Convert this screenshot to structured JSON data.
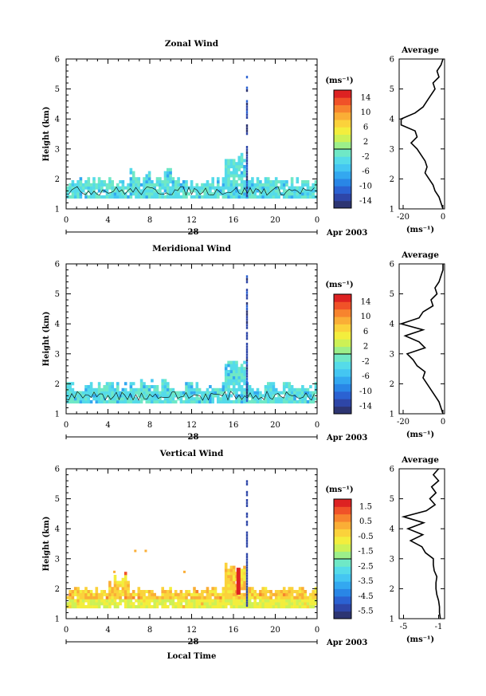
{
  "chart_data": [
    {
      "type": "heatmap",
      "title": "Zonal Wind",
      "ylabel": "Height (km)",
      "xlabel": "",
      "ylim": [
        1,
        6
      ],
      "yticks": [
        "1",
        "2",
        "3",
        "4",
        "5",
        "6"
      ],
      "xticks": [
        "0",
        "4",
        "8",
        "12",
        "16",
        "20",
        "0"
      ],
      "date_day": "28",
      "date_label": "Apr 2003",
      "colorbar": {
        "unit": "(ms⁻¹)",
        "ticks": [
          "14",
          "10",
          "6",
          "2",
          "-2",
          "-6",
          "-10",
          "-14"
        ],
        "range": [
          -16,
          16
        ]
      },
      "average_profile": {
        "title": "Average",
        "xlabel": "(ms⁻¹)",
        "xticks": [
          "-20",
          "0"
        ],
        "xlim": [
          -22,
          0
        ],
        "heights": [
          1.0,
          1.2,
          1.4,
          1.6,
          1.8,
          2.0,
          2.2,
          2.4,
          2.6,
          2.8,
          3.0,
          3.2,
          3.4,
          3.6,
          3.8,
          4.0,
          4.2,
          4.4,
          4.6,
          4.8,
          5.0,
          5.2,
          5.4,
          5.6,
          5.8,
          6.0
        ],
        "values": [
          0,
          -1,
          -2,
          -4,
          -5,
          -7,
          -9,
          -8,
          -9,
          -11,
          -13,
          -16,
          -13,
          -14,
          -21,
          -21,
          -14,
          -10,
          -8,
          -6,
          -4,
          -5,
          -2,
          -3,
          -1,
          0
        ]
      }
    },
    {
      "type": "heatmap",
      "title": "Meridional Wind",
      "ylabel": "Height (km)",
      "xlabel": "",
      "ylim": [
        1,
        6
      ],
      "yticks": [
        "1",
        "2",
        "3",
        "4",
        "5",
        "6"
      ],
      "xticks": [
        "0",
        "4",
        "8",
        "12",
        "16",
        "20",
        "0"
      ],
      "date_day": "28",
      "date_label": "Apr 2003",
      "colorbar": {
        "unit": "(ms⁻¹)",
        "ticks": [
          "14",
          "10",
          "6",
          "2",
          "-2",
          "-6",
          "-10",
          "-14"
        ],
        "range": [
          -16,
          16
        ]
      },
      "average_profile": {
        "title": "Average",
        "xlabel": "(ms⁻¹)",
        "xticks": [
          "-20",
          "0"
        ],
        "xlim": [
          -22,
          0
        ],
        "heights": [
          1.0,
          1.2,
          1.4,
          1.6,
          1.8,
          2.0,
          2.2,
          2.4,
          2.6,
          2.8,
          3.0,
          3.2,
          3.4,
          3.6,
          3.8,
          4.0,
          4.2,
          4.4,
          4.6,
          4.8,
          5.0,
          5.2,
          5.4,
          5.6,
          5.8,
          6.0
        ],
        "values": [
          0,
          -1,
          -2,
          -4,
          -6,
          -8,
          -10,
          -9,
          -13,
          -15,
          -18,
          -9,
          -12,
          -19,
          -10,
          -21,
          -12,
          -10,
          -5,
          -6,
          -3,
          -4,
          -2,
          -1,
          0,
          0
        ]
      }
    },
    {
      "type": "heatmap",
      "title": "Vertical Wind",
      "ylabel": "Height (km)",
      "xlabel": "Local Time",
      "ylim": [
        1,
        6
      ],
      "yticks": [
        "1",
        "2",
        "3",
        "4",
        "5",
        "6"
      ],
      "xticks": [
        "0",
        "4",
        "8",
        "12",
        "16",
        "20",
        "0"
      ],
      "date_day": "28",
      "date_label": "Apr 2003",
      "colorbar": {
        "unit": "(ms⁻¹)",
        "ticks": [
          "1.5",
          "0.5",
          "-0.5",
          "-1.5",
          "-2.5",
          "-3.5",
          "-4.5",
          "-5.5"
        ],
        "range": [
          -6,
          2
        ]
      },
      "average_profile": {
        "title": "Average",
        "xlabel": "(ms⁻¹)",
        "xticks": [
          "-5",
          "-1"
        ],
        "xlim": [
          -5.5,
          -0.5
        ],
        "heights": [
          1.0,
          1.2,
          1.4,
          1.6,
          1.8,
          2.0,
          2.2,
          2.4,
          2.6,
          2.8,
          3.0,
          3.2,
          3.4,
          3.6,
          3.8,
          4.0,
          4.2,
          4.4,
          4.6,
          4.8,
          5.0,
          5.2,
          5.4,
          5.6,
          5.8,
          6.0
        ],
        "values": [
          -0.8,
          -0.9,
          -0.9,
          -1.0,
          -1.2,
          -1.3,
          -1.3,
          -1.2,
          -1.5,
          -1.6,
          -1.6,
          -2.5,
          -2.9,
          -4.2,
          -2.8,
          -4.5,
          -2.7,
          -5.0,
          -2.4,
          -1.4,
          -2.0,
          -1.3,
          -1.8,
          -1.0,
          -1.6,
          -1.0
        ]
      }
    }
  ],
  "colors": {
    "palette": [
      "#2d3572",
      "#2e46a8",
      "#2b62d2",
      "#2986e6",
      "#33a8f0",
      "#44c6f2",
      "#55dbe9",
      "#6fe8c6",
      "#9cef8a",
      "#cdf156",
      "#f3ee3d",
      "#fbd23b",
      "#faae36",
      "#f7842e",
      "#f05228",
      "#dd2222"
    ]
  }
}
